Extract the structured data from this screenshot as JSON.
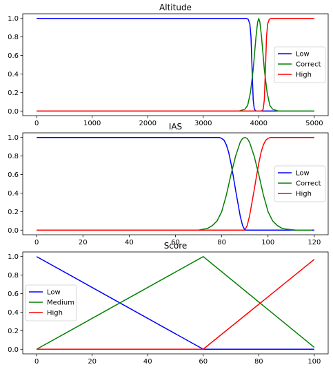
{
  "chart_data": [
    {
      "type": "line",
      "title": "Altitude",
      "xlabel": "",
      "ylabel": "",
      "xlim": [
        -250,
        5250
      ],
      "ylim": [
        -0.05,
        1.05
      ],
      "xticks": [
        0,
        1000,
        2000,
        3000,
        4000,
        5000
      ],
      "yticks": [
        0.0,
        0.2,
        0.4,
        0.6,
        0.8,
        1.0
      ],
      "legend_position": "center-right",
      "series": [
        {
          "name": "Low",
          "color": "#0000ff",
          "points": [
            [
              0,
              1
            ],
            [
              3780,
              1
            ],
            [
              3810,
              0.99
            ],
            [
              3840,
              0.94
            ],
            [
              3860,
              0.8
            ],
            [
              3880,
              0.45
            ],
            [
              3900,
              0.12
            ],
            [
              3920,
              0.02
            ],
            [
              3950,
              0
            ],
            [
              5000,
              0
            ]
          ]
        },
        {
          "name": "Correct",
          "color": "#008000",
          "points": [
            [
              0,
              0
            ],
            [
              3650,
              0
            ],
            [
              3750,
              0.02
            ],
            [
              3800,
              0.06
            ],
            [
              3850,
              0.2
            ],
            [
              3900,
              0.45
            ],
            [
              3950,
              0.8
            ],
            [
              3980,
              0.96
            ],
            [
              4000,
              1
            ],
            [
              4020,
              0.96
            ],
            [
              4050,
              0.8
            ],
            [
              4100,
              0.45
            ],
            [
              4150,
              0.2
            ],
            [
              4200,
              0.06
            ],
            [
              4250,
              0.02
            ],
            [
              4350,
              0
            ],
            [
              5000,
              0
            ]
          ]
        },
        {
          "name": "High",
          "color": "#ff0000",
          "points": [
            [
              0,
              0
            ],
            [
              4050,
              0
            ],
            [
              4080,
              0.02
            ],
            [
              4100,
              0.12
            ],
            [
              4120,
              0.45
            ],
            [
              4140,
              0.8
            ],
            [
              4160,
              0.94
            ],
            [
              4190,
              0.99
            ],
            [
              4220,
              1
            ],
            [
              5000,
              1
            ]
          ]
        }
      ]
    },
    {
      "type": "line",
      "title": "IAS",
      "xlabel": "",
      "ylabel": "",
      "xlim": [
        -6,
        126
      ],
      "ylim": [
        -0.05,
        1.05
      ],
      "xticks": [
        0,
        20,
        40,
        60,
        80,
        100,
        120
      ],
      "yticks": [
        0.0,
        0.2,
        0.4,
        0.6,
        0.8,
        1.0
      ],
      "legend_position": "center-right",
      "series": [
        {
          "name": "Low",
          "color": "#0000ff",
          "points": [
            [
              0,
              1
            ],
            [
              79,
              1
            ],
            [
              80,
              0.99
            ],
            [
              81,
              0.97
            ],
            [
              82,
              0.92
            ],
            [
              83,
              0.84
            ],
            [
              84,
              0.72
            ],
            [
              85,
              0.58
            ],
            [
              86,
              0.43
            ],
            [
              87,
              0.29
            ],
            [
              88,
              0.15
            ],
            [
              89,
              0.05
            ],
            [
              90,
              0
            ],
            [
              120,
              0
            ]
          ]
        },
        {
          "name": "Correct",
          "color": "#008000",
          "points": [
            [
              0,
              0
            ],
            [
              70,
              0
            ],
            [
              72,
              0.01
            ],
            [
              74,
              0.02
            ],
            [
              76,
              0.05
            ],
            [
              78,
              0.1
            ],
            [
              80,
              0.2
            ],
            [
              82,
              0.38
            ],
            [
              84,
              0.6
            ],
            [
              86,
              0.8
            ],
            [
              88,
              0.95
            ],
            [
              89,
              0.99
            ],
            [
              90,
              1
            ],
            [
              91,
              0.99
            ],
            [
              92,
              0.95
            ],
            [
              94,
              0.8
            ],
            [
              96,
              0.6
            ],
            [
              98,
              0.38
            ],
            [
              100,
              0.2
            ],
            [
              102,
              0.1
            ],
            [
              104,
              0.05
            ],
            [
              106,
              0.02
            ],
            [
              108,
              0.01
            ],
            [
              112,
              0
            ],
            [
              119,
              0
            ]
          ]
        },
        {
          "name": "High",
          "color": "#ff0000",
          "points": [
            [
              0,
              0
            ],
            [
              90,
              0
            ],
            [
              91,
              0.05
            ],
            [
              92,
              0.15
            ],
            [
              93,
              0.29
            ],
            [
              94,
              0.43
            ],
            [
              95,
              0.58
            ],
            [
              96,
              0.72
            ],
            [
              97,
              0.84
            ],
            [
              98,
              0.92
            ],
            [
              99,
              0.97
            ],
            [
              100,
              0.99
            ],
            [
              101,
              1
            ],
            [
              120,
              1
            ]
          ]
        }
      ]
    },
    {
      "type": "line",
      "title": "Score",
      "xlabel": "",
      "ylabel": "",
      "xlim": [
        -5,
        105
      ],
      "ylim": [
        -0.05,
        1.05
      ],
      "xticks": [
        0,
        20,
        40,
        60,
        80,
        100
      ],
      "yticks": [
        0.0,
        0.2,
        0.4,
        0.6,
        0.8,
        1.0
      ],
      "legend_position": "center-left",
      "series": [
        {
          "name": "Low",
          "color": "#0000ff",
          "points": [
            [
              0,
              1
            ],
            [
              60,
              0
            ],
            [
              100,
              0
            ]
          ]
        },
        {
          "name": "Medium",
          "color": "#008000",
          "points": [
            [
              0,
              0
            ],
            [
              60,
              1
            ],
            [
              100,
              0.02
            ]
          ]
        },
        {
          "name": "High",
          "color": "#ff0000",
          "points": [
            [
              0,
              0
            ],
            [
              60,
              0
            ],
            [
              100,
              0.97
            ]
          ]
        }
      ]
    }
  ]
}
